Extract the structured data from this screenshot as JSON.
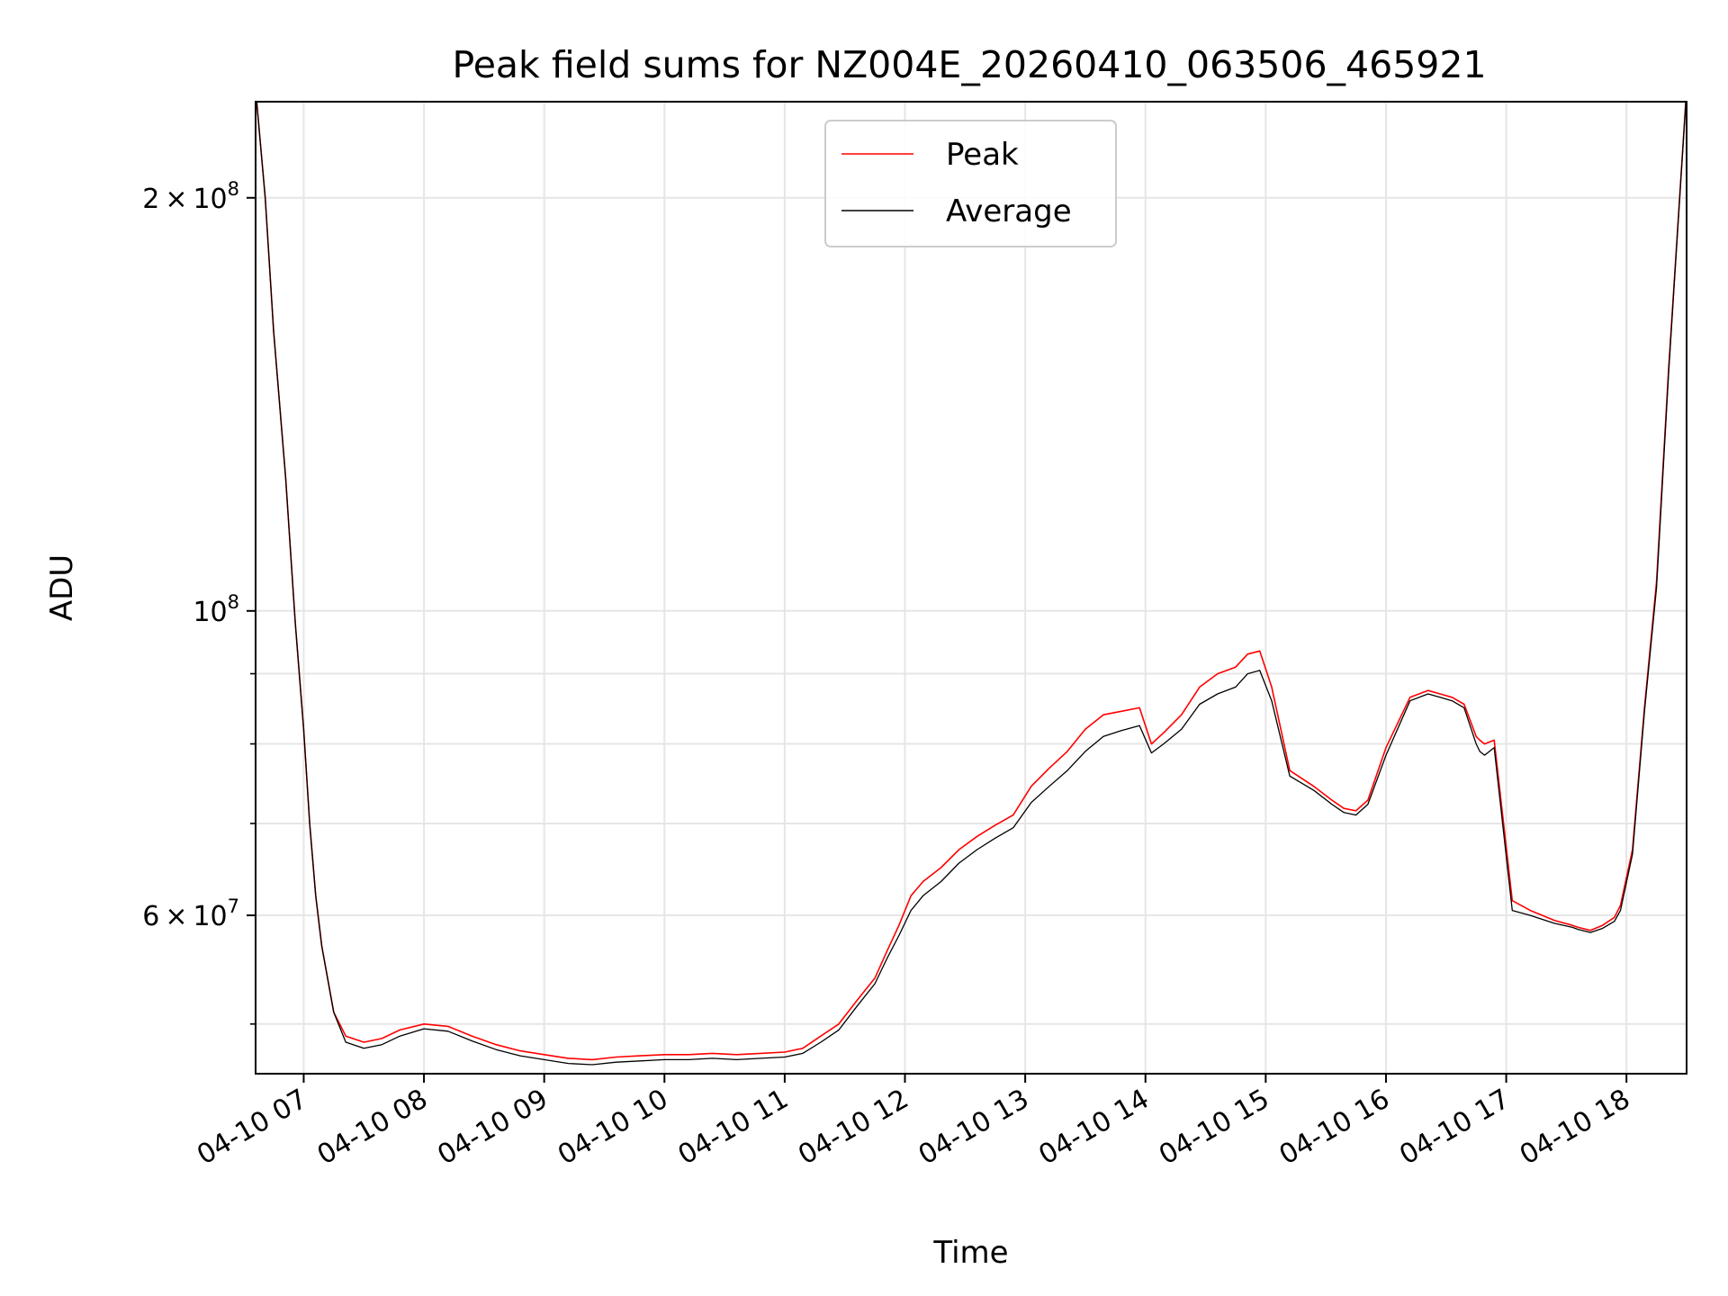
{
  "chart_data": {
    "type": "line",
    "title": "Peak field sums for NZ004E_20260410_063506_465921",
    "xlabel": "Time",
    "ylabel": "ADU",
    "yscale": "log",
    "xlim_hours": [
      6.6,
      18.5
    ],
    "ylim": [
      46000000,
      235000000
    ],
    "grid": true,
    "legend_position": "upper-center",
    "x_ticks": [
      {
        "value": 7,
        "label": "04-10 07"
      },
      {
        "value": 8,
        "label": "04-10 08"
      },
      {
        "value": 9,
        "label": "04-10 09"
      },
      {
        "value": 10,
        "label": "04-10 10"
      },
      {
        "value": 11,
        "label": "04-10 11"
      },
      {
        "value": 12,
        "label": "04-10 12"
      },
      {
        "value": 13,
        "label": "04-10 13"
      },
      {
        "value": 14,
        "label": "04-10 14"
      },
      {
        "value": 15,
        "label": "04-10 15"
      },
      {
        "value": 16,
        "label": "04-10 16"
      },
      {
        "value": 17,
        "label": "04-10 17"
      },
      {
        "value": 18,
        "label": "04-10 18"
      }
    ],
    "y_major_ticks": [
      {
        "value": 200000000,
        "mantissa": "2",
        "exponent": "8"
      },
      {
        "value": 100000000,
        "mantissa": "",
        "exponent": "8"
      },
      {
        "value": 60000000,
        "mantissa": "6",
        "exponent": "7"
      }
    ],
    "y_minor_ticks": [
      50000000,
      70000000,
      80000000,
      90000000
    ],
    "series": [
      {
        "name": "Peak",
        "color": "#ff0000",
        "x": [
          6.6,
          6.68,
          6.75,
          6.85,
          6.93,
          7.0,
          7.05,
          7.1,
          7.15,
          7.25,
          7.35,
          7.5,
          7.65,
          7.8,
          8.0,
          8.2,
          8.4,
          8.6,
          8.8,
          9.0,
          9.2,
          9.4,
          9.6,
          9.8,
          10.0,
          10.2,
          10.4,
          10.6,
          10.8,
          11.0,
          11.15,
          11.3,
          11.45,
          11.6,
          11.75,
          11.85,
          11.95,
          12.05,
          12.15,
          12.3,
          12.45,
          12.6,
          12.75,
          12.9,
          13.05,
          13.2,
          13.35,
          13.5,
          13.65,
          13.8,
          13.95,
          14.05,
          14.15,
          14.3,
          14.45,
          14.6,
          14.75,
          14.85,
          14.95,
          15.05,
          15.2,
          15.4,
          15.55,
          15.65,
          15.75,
          15.85,
          16.0,
          16.2,
          16.35,
          16.45,
          16.55,
          16.65,
          16.75,
          16.78,
          16.82,
          16.9,
          17.05,
          17.2,
          17.4,
          17.55,
          17.6,
          17.7,
          17.8,
          17.9,
          17.95,
          18.05,
          18.15,
          18.25,
          18.35,
          18.5
        ],
        "y": [
          240000000,
          200000000,
          160000000,
          125000000,
          98000000,
          82000000,
          70000000,
          62000000,
          57000000,
          51000000,
          49000000,
          48500000,
          48800000,
          49500000,
          50000000,
          49800000,
          49000000,
          48300000,
          47800000,
          47500000,
          47200000,
          47100000,
          47300000,
          47400000,
          47500000,
          47500000,
          47600000,
          47500000,
          47600000,
          47700000,
          48000000,
          49000000,
          50000000,
          52000000,
          54000000,
          56500000,
          59000000,
          62000000,
          63500000,
          65000000,
          67000000,
          68500000,
          69800000,
          71000000,
          74500000,
          76800000,
          79000000,
          82000000,
          84000000,
          84500000,
          85000000,
          80000000,
          81500000,
          84000000,
          88000000,
          90000000,
          91000000,
          93000000,
          93500000,
          88000000,
          76500000,
          74500000,
          72800000,
          71800000,
          71500000,
          72800000,
          79500000,
          86500000,
          87500000,
          87000000,
          86500000,
          85500000,
          81000000,
          80500000,
          80000000,
          80500000,
          61500000,
          60500000,
          59500000,
          59000000,
          58800000,
          58500000,
          59000000,
          59800000,
          61000000,
          67000000,
          85000000,
          105000000,
          150000000,
          240000000
        ]
      },
      {
        "name": "Average",
        "color": "#000000",
        "x": [
          6.6,
          6.68,
          6.75,
          6.85,
          6.93,
          7.0,
          7.05,
          7.1,
          7.15,
          7.25,
          7.35,
          7.5,
          7.65,
          7.8,
          8.0,
          8.2,
          8.4,
          8.6,
          8.8,
          9.0,
          9.2,
          9.4,
          9.6,
          9.8,
          10.0,
          10.2,
          10.4,
          10.6,
          10.8,
          11.0,
          11.15,
          11.3,
          11.45,
          11.6,
          11.75,
          11.85,
          11.95,
          12.05,
          12.15,
          12.3,
          12.45,
          12.6,
          12.75,
          12.9,
          13.05,
          13.2,
          13.35,
          13.5,
          13.65,
          13.8,
          13.95,
          14.05,
          14.15,
          14.3,
          14.45,
          14.6,
          14.75,
          14.85,
          14.95,
          15.05,
          15.2,
          15.4,
          15.55,
          15.65,
          15.75,
          15.85,
          16.0,
          16.2,
          16.35,
          16.45,
          16.55,
          16.65,
          16.75,
          16.78,
          16.82,
          16.9,
          17.05,
          17.2,
          17.4,
          17.55,
          17.6,
          17.7,
          17.8,
          17.9,
          17.95,
          18.05,
          18.15,
          18.25,
          18.35,
          18.5
        ],
        "y": [
          240000000,
          200000000,
          160000000,
          125000000,
          98000000,
          82000000,
          70000000,
          62000000,
          57000000,
          51000000,
          48500000,
          48000000,
          48300000,
          49000000,
          49600000,
          49400000,
          48600000,
          47900000,
          47400000,
          47100000,
          46800000,
          46700000,
          46900000,
          47000000,
          47100000,
          47100000,
          47200000,
          47100000,
          47200000,
          47300000,
          47600000,
          48500000,
          49500000,
          51500000,
          53500000,
          55800000,
          58000000,
          60500000,
          62000000,
          63500000,
          65500000,
          67000000,
          68300000,
          69500000,
          72500000,
          74500000,
          76500000,
          79000000,
          81000000,
          81800000,
          82500000,
          78800000,
          80000000,
          82000000,
          85500000,
          87000000,
          88000000,
          90000000,
          90500000,
          86000000,
          75800000,
          74000000,
          72300000,
          71300000,
          71000000,
          72300000,
          78500000,
          86000000,
          87000000,
          86500000,
          86000000,
          85000000,
          80000000,
          79000000,
          78500000,
          79500000,
          60500000,
          60000000,
          59200000,
          58800000,
          58600000,
          58300000,
          58700000,
          59400000,
          60500000,
          66500000,
          84500000,
          104000000,
          149000000,
          240000000
        ]
      }
    ]
  }
}
